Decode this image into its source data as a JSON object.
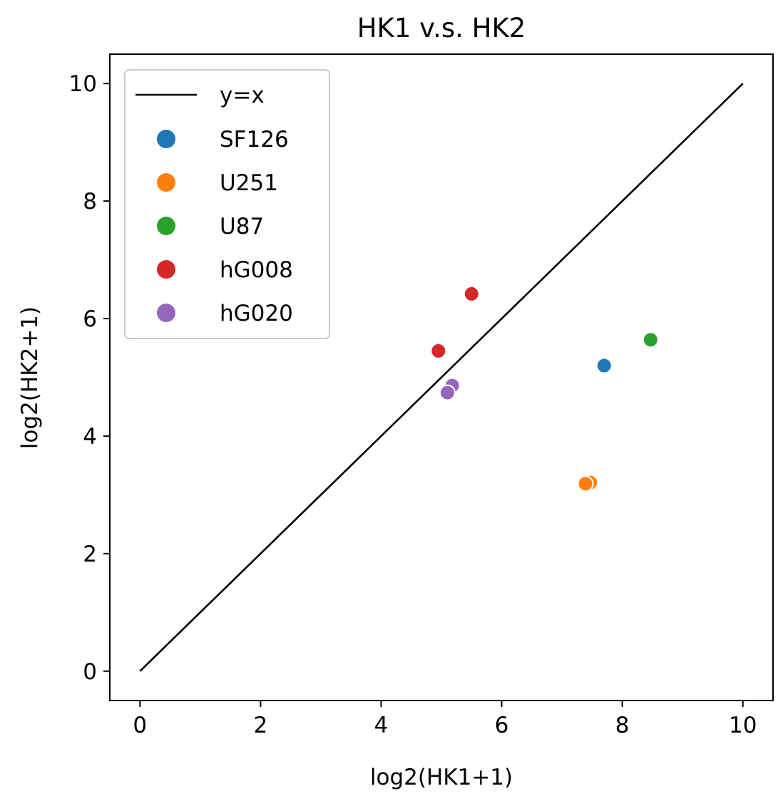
{
  "chart_data": {
    "type": "scatter",
    "title": "HK1 v.s. HK2",
    "xlabel": "log2(HK1+1)",
    "ylabel": "log2(HK2+1)",
    "xlim": [
      -0.5,
      10.5
    ],
    "ylim": [
      -0.5,
      10.5
    ],
    "xticks": [
      "0",
      "2",
      "4",
      "6",
      "8",
      "10"
    ],
    "yticks": [
      "0",
      "2",
      "4",
      "6",
      "8",
      "10"
    ],
    "grid": false,
    "legend_position": "top-left",
    "reference_line": {
      "name": "y=x",
      "x": [
        0,
        10
      ],
      "y": [
        0,
        10
      ],
      "color": "#000000"
    },
    "series": [
      {
        "name": "SF126",
        "color": "#1f77b4",
        "points": [
          [
            7.7,
            5.2
          ]
        ]
      },
      {
        "name": "U251",
        "color": "#ff7f0e",
        "points": [
          [
            7.47,
            3.21
          ],
          [
            7.39,
            3.19
          ]
        ]
      },
      {
        "name": "U87",
        "color": "#2ca02c",
        "points": [
          [
            8.47,
            5.64
          ]
        ]
      },
      {
        "name": "hG008",
        "color": "#d62728",
        "points": [
          [
            5.5,
            6.42
          ],
          [
            4.95,
            5.45
          ]
        ]
      },
      {
        "name": "hG020",
        "color": "#9467bd",
        "points": [
          [
            5.18,
            4.86
          ],
          [
            5.1,
            4.74
          ]
        ]
      }
    ]
  }
}
